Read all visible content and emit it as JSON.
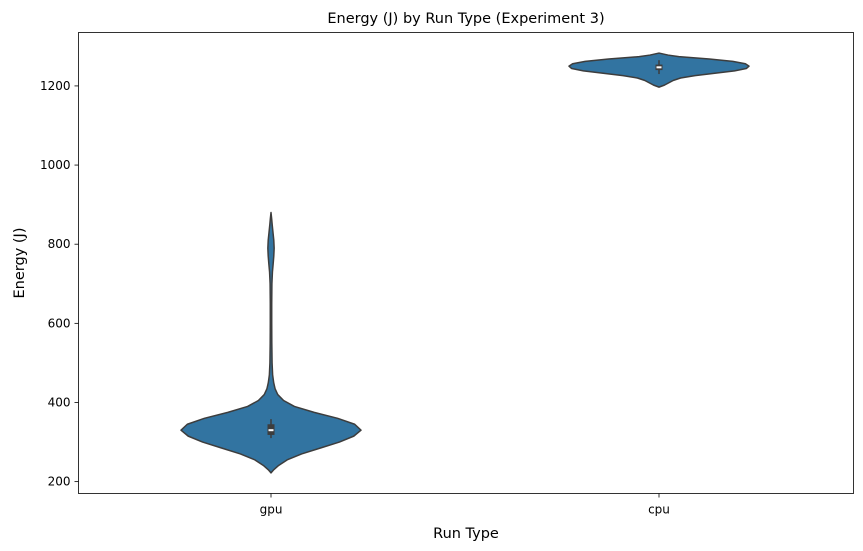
{
  "chart_data": {
    "type": "violin",
    "title": "Energy (J) by Run Type (Experiment 3)",
    "xlabel": "Run Type",
    "ylabel": "Energy (J)",
    "categories": [
      "gpu",
      "cpu"
    ],
    "ylim": [
      170,
      1335
    ],
    "yticks": [
      200,
      400,
      600,
      800,
      1000,
      1200
    ],
    "grid": false,
    "fill_color": "#3274a1",
    "edge_color": "#3d3d3d",
    "violins": [
      {
        "category": "gpu",
        "min": 222,
        "max": 880,
        "profile": [
          [
            222,
            0.0
          ],
          [
            230,
            0.03
          ],
          [
            240,
            0.08
          ],
          [
            255,
            0.18
          ],
          [
            270,
            0.34
          ],
          [
            285,
            0.55
          ],
          [
            300,
            0.76
          ],
          [
            315,
            0.92
          ],
          [
            330,
            1.0
          ],
          [
            345,
            0.93
          ],
          [
            360,
            0.74
          ],
          [
            375,
            0.48
          ],
          [
            390,
            0.26
          ],
          [
            405,
            0.14
          ],
          [
            420,
            0.075
          ],
          [
            435,
            0.045
          ],
          [
            450,
            0.03
          ],
          [
            470,
            0.018
          ],
          [
            500,
            0.012
          ],
          [
            550,
            0.009
          ],
          [
            600,
            0.008
          ],
          [
            650,
            0.008
          ],
          [
            700,
            0.01
          ],
          [
            730,
            0.016
          ],
          [
            750,
            0.024
          ],
          [
            770,
            0.031
          ],
          [
            790,
            0.035
          ],
          [
            810,
            0.031
          ],
          [
            830,
            0.022
          ],
          [
            850,
            0.013
          ],
          [
            865,
            0.007
          ],
          [
            880,
            0.0
          ]
        ],
        "q1": 318,
        "median": 330,
        "q3": 345,
        "whisker_low": 310,
        "whisker_high": 358
      },
      {
        "category": "cpu",
        "min": 1197,
        "max": 1283,
        "profile": [
          [
            1197,
            0.0
          ],
          [
            1202,
            0.06
          ],
          [
            1208,
            0.11
          ],
          [
            1214,
            0.16
          ],
          [
            1220,
            0.24
          ],
          [
            1226,
            0.4
          ],
          [
            1232,
            0.62
          ],
          [
            1238,
            0.84
          ],
          [
            1244,
            0.97
          ],
          [
            1250,
            1.0
          ],
          [
            1256,
            0.96
          ],
          [
            1262,
            0.82
          ],
          [
            1268,
            0.56
          ],
          [
            1274,
            0.22
          ],
          [
            1278,
            0.1
          ],
          [
            1283,
            0.0
          ]
        ],
        "q1": 1240,
        "median": 1247,
        "q3": 1254,
        "whisker_low": 1230,
        "whisker_high": 1265
      }
    ]
  }
}
